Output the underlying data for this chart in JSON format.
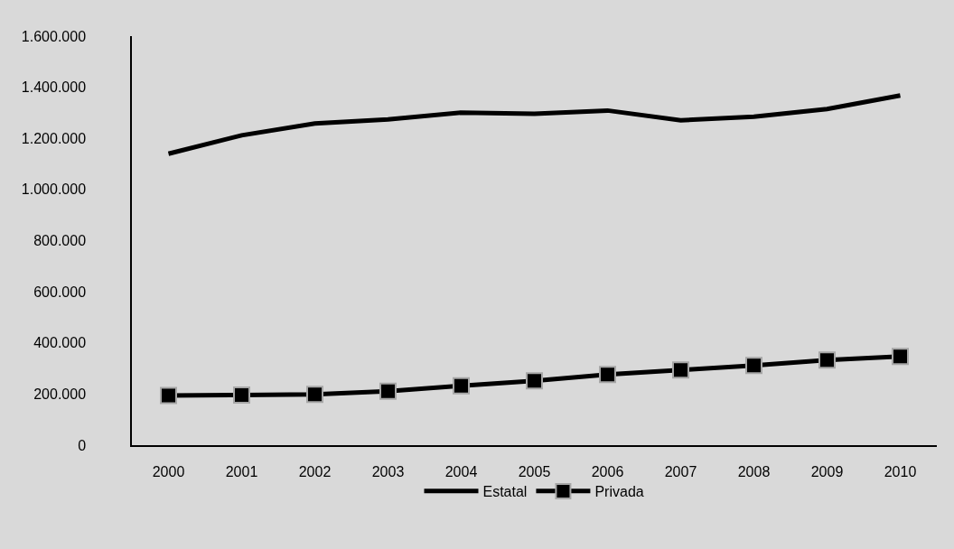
{
  "chart_data": {
    "type": "line",
    "categories": [
      "2000",
      "2001",
      "2002",
      "2003",
      "2004",
      "2005",
      "2006",
      "2007",
      "2008",
      "2009",
      "2010"
    ],
    "series": [
      {
        "name": "Estatal",
        "color": "#000000",
        "marker": "none",
        "values": [
          1140000,
          1212000,
          1258000,
          1274000,
          1301000,
          1296000,
          1309000,
          1271000,
          1285000,
          1315000,
          1368000
        ]
      },
      {
        "name": "Privada",
        "color": "#000000",
        "marker": "square",
        "values": [
          194000,
          196000,
          199000,
          211000,
          232000,
          252000,
          276000,
          294000,
          312000,
          333000,
          347000
        ]
      }
    ],
    "ylim": [
      0,
      1600000
    ],
    "yticks": [
      0,
      {
        "value": 200000,
        "label": "200.000"
      },
      {
        "value": 400000,
        "label": "400.000"
      },
      {
        "value": 600000,
        "label": "600.000"
      },
      {
        "value": 800000,
        "label": "800.000"
      },
      {
        "value": 1000000,
        "label": "1.000.000"
      },
      {
        "value": 1200000,
        "label": "1.200.000"
      },
      {
        "value": 1400000,
        "label": "1.400.000"
      },
      {
        "value": 1600000,
        "label": "1.600.000"
      }
    ],
    "grid": false,
    "legend": "bottom",
    "line_style": "solid"
  }
}
